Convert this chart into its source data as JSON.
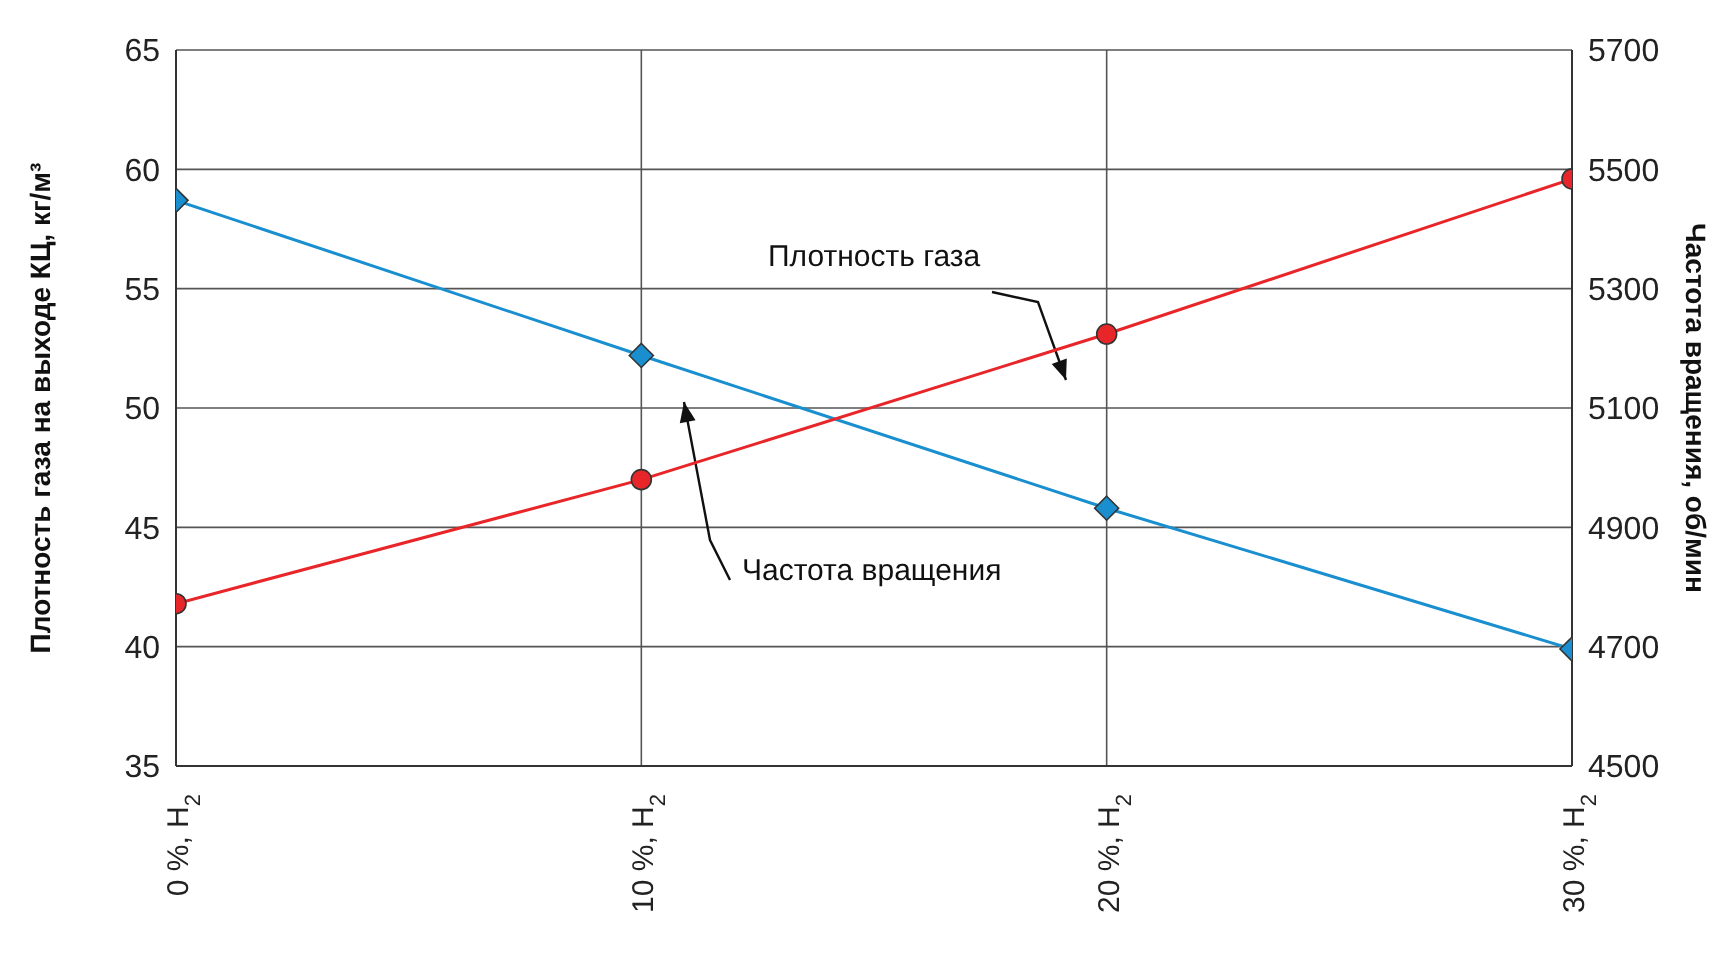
{
  "chart_data": {
    "type": "line",
    "categories": [
      "0 %, H$_{2}$",
      "10 %, H$_{2}$",
      "20 %, H$_{2}$",
      "30 %, H$_{2}$"
    ],
    "series": [
      {
        "color": "#1a8fd0",
        "values": [
          58.7,
          52.2,
          45.8,
          39.9
        ],
        "marker": "diamond"
      },
      {
        "color": "#e8262a",
        "values": [
          4772,
          4980,
          5224,
          5484
        ],
        "axis": "y2",
        "marker": "circle"
      }
    ],
    "ylabel": "Плотность газа на выходе КЦ, кг/м³",
    "y2label": "Частота вращения, об/мин",
    "ylim": [
      35,
      65
    ],
    "yticks": [
      35,
      40,
      45,
      50,
      55,
      60,
      65
    ],
    "y2lim": [
      4500,
      5700
    ],
    "y2ticks": [
      4500,
      4700,
      4900,
      5100,
      5300,
      5500,
      5700
    ],
    "annotations": [
      "Плотность газа",
      "Частота вращения"
    ],
    "grid": true,
    "legend": false,
    "line_style": "solid"
  }
}
